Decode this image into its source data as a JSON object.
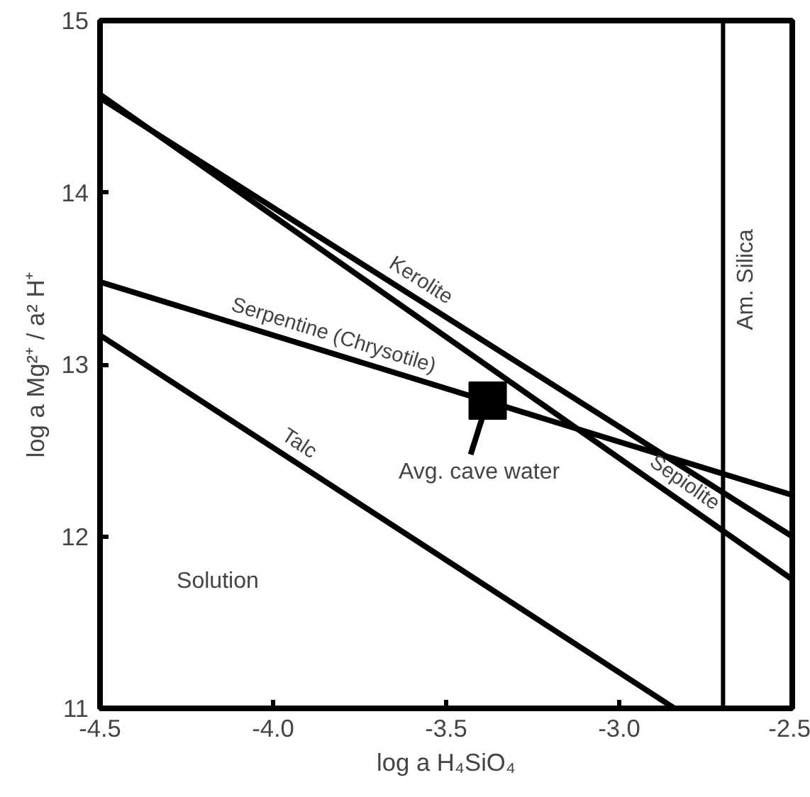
{
  "chart_data": {
    "type": "line",
    "xlabel": "log a H₄SiO₄",
    "ylabel": "log a Mg²⁺ / a² H⁺",
    "xlim": [
      -4.5,
      -2.5
    ],
    "ylim": [
      11,
      15
    ],
    "xticks": [
      -4.5,
      {
        "value": -4.0,
        "label": "-4.0"
      },
      -3.5,
      {
        "value": -3.0,
        "label": "-3.0"
      },
      -2.5
    ],
    "yticks": [
      11,
      12,
      13,
      14,
      15
    ],
    "grid": false,
    "marker": "none",
    "line_style": "solid",
    "series": [
      {
        "name": "Kerolite",
        "color": "#000000",
        "x": [
          -4.5,
          -2.5
        ],
        "values": [
          14.55,
          12.0
        ]
      },
      {
        "name": "Sepiolite",
        "color": "#000000",
        "x": [
          -4.5,
          -2.5
        ],
        "values": [
          14.57,
          11.75
        ]
      },
      {
        "name": "Serpentine (Chrysotile)",
        "color": "#000000",
        "x": [
          -4.5,
          -2.5
        ],
        "values": [
          13.48,
          12.24
        ]
      },
      {
        "name": "Talc",
        "color": "#000000",
        "x": [
          -4.5,
          -2.84
        ],
        "values": [
          13.17,
          11.0
        ]
      },
      {
        "type": "scatter",
        "marker": "square",
        "color": "#000000",
        "x": [
          -3.38
        ],
        "values": [
          12.79
        ]
      }
    ],
    "ref_lines": [
      {
        "axis": "x",
        "value": -2.7,
        "label": "Am. Silica",
        "color": "#000000"
      }
    ],
    "annotations": [
      {
        "text": "Avg. cave water",
        "x": -3.38,
        "y": 12.79
      },
      "Solution"
    ]
  }
}
